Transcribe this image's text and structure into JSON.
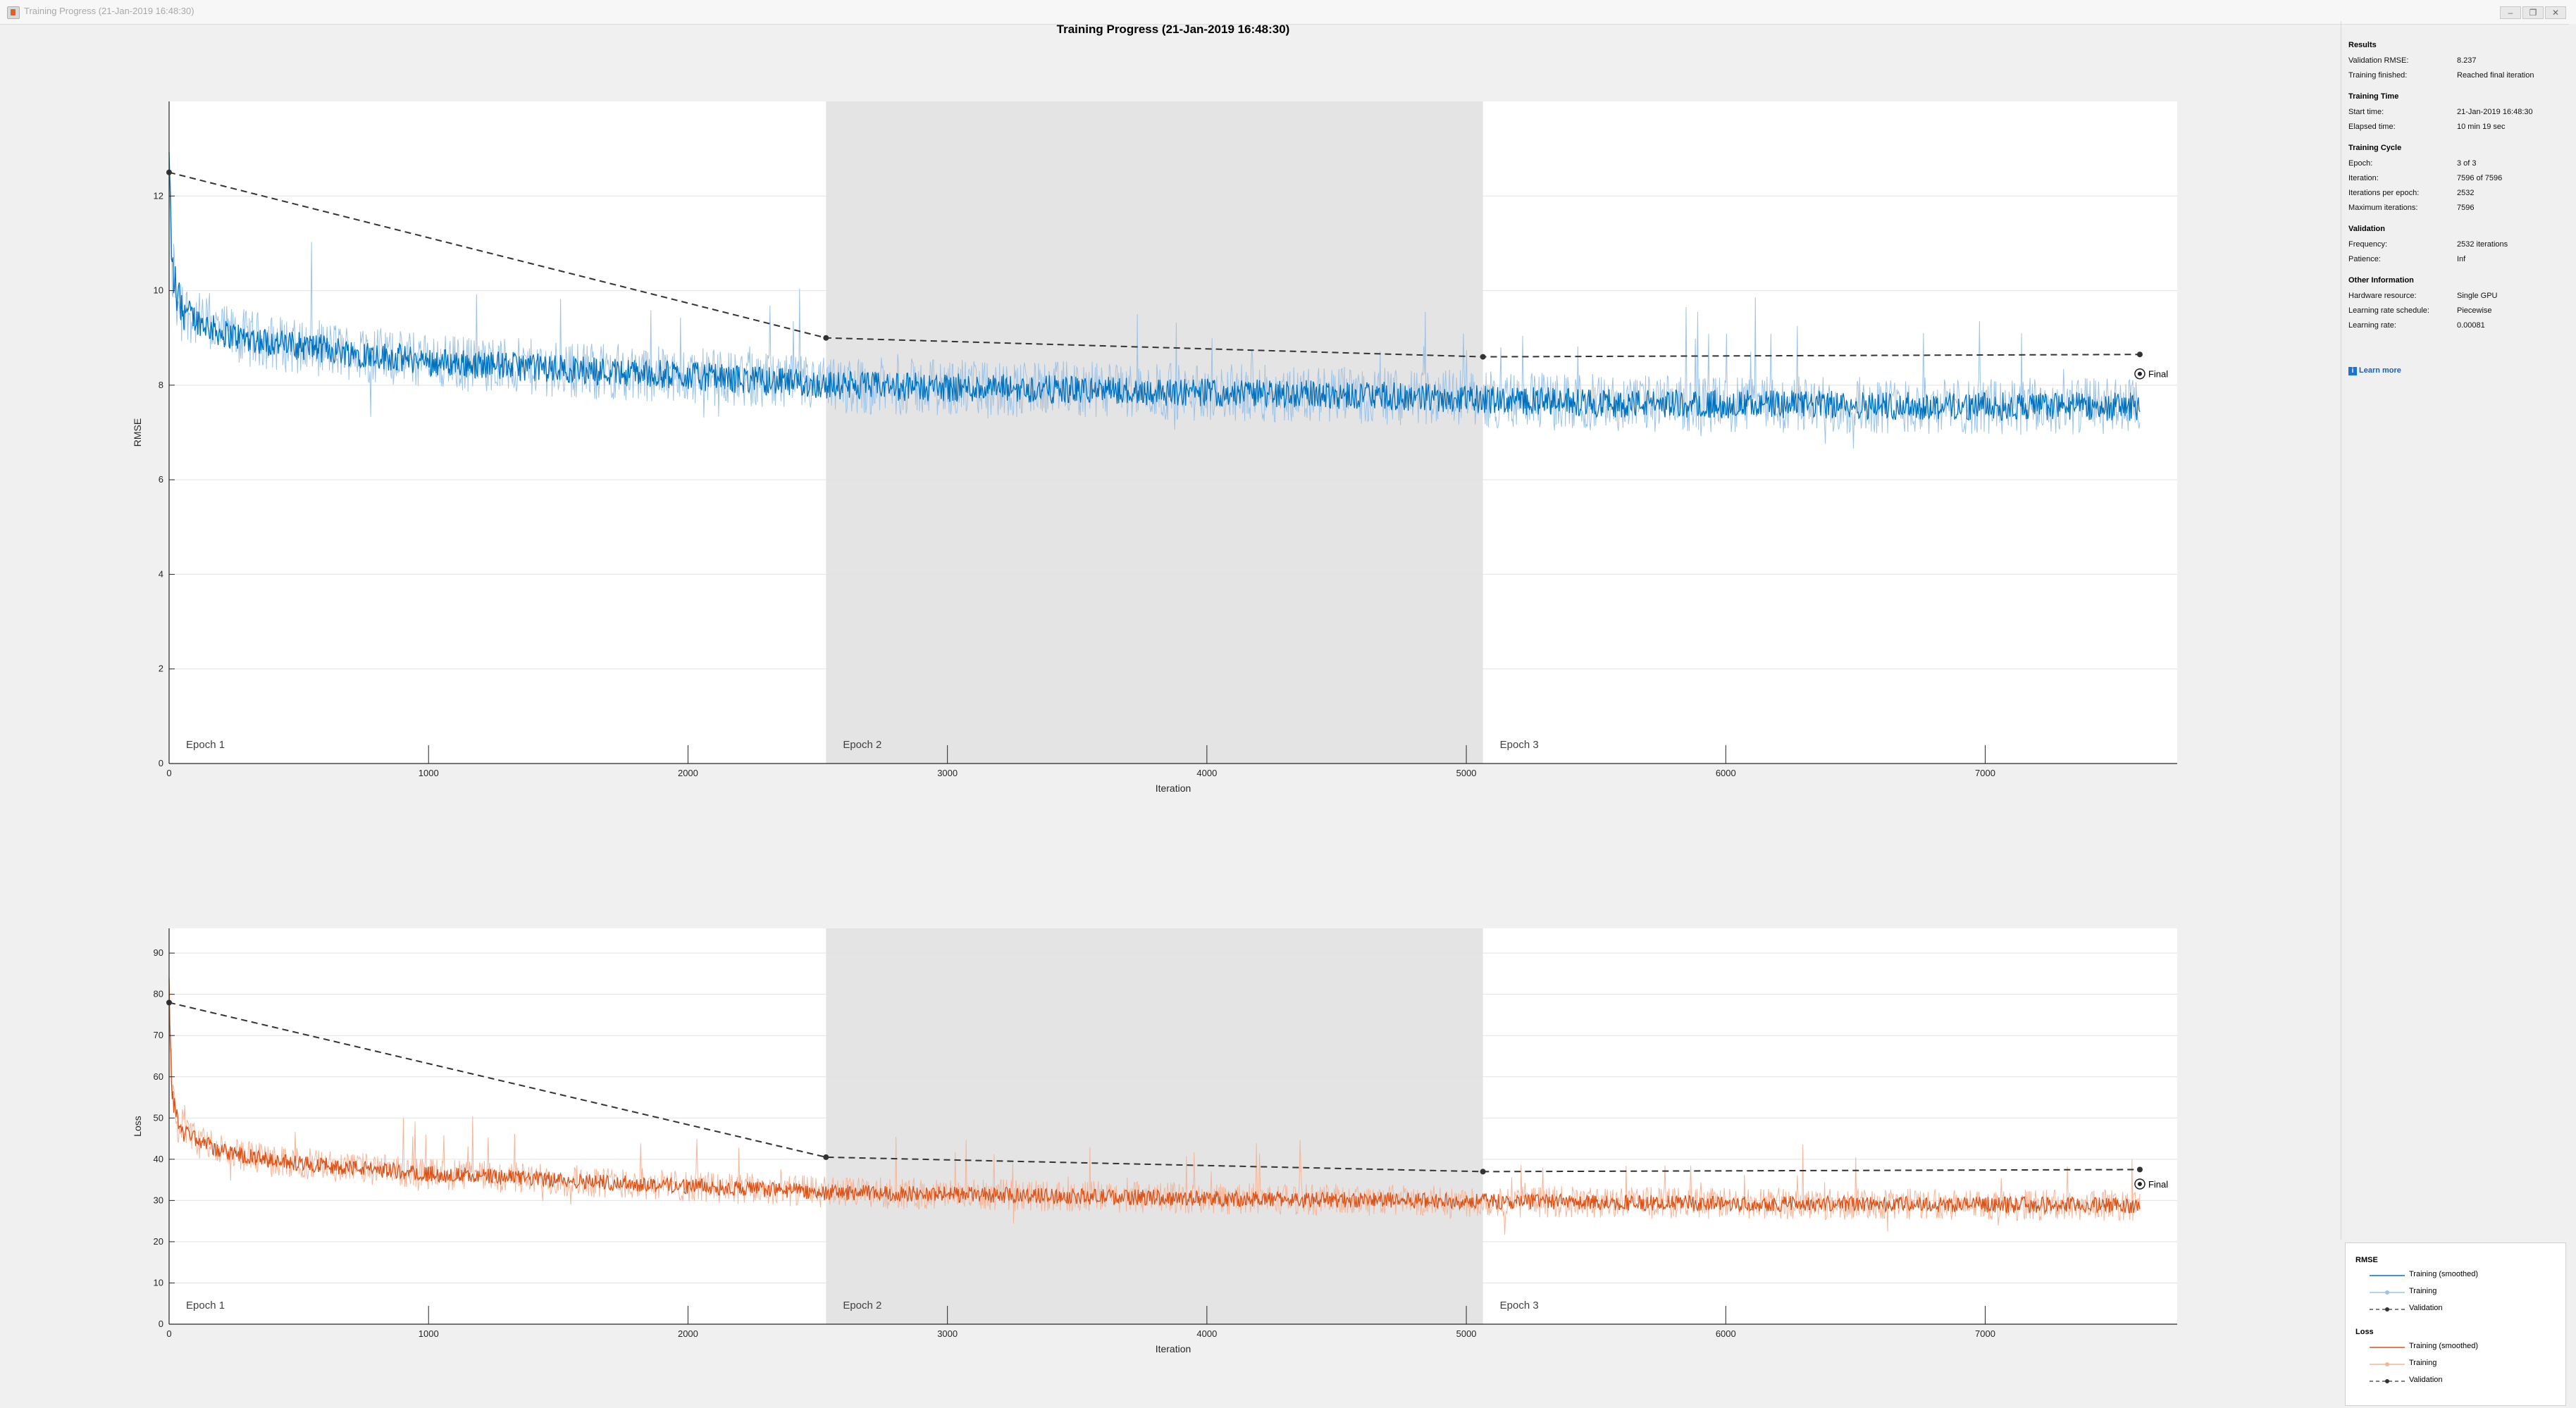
{
  "window": {
    "title": "Training Progress (21-Jan-2019 16:48:30)",
    "buttons": [
      "–",
      "❐",
      "✕"
    ]
  },
  "plot_title": "Training Progress (21-Jan-2019 16:48:30)",
  "colors": {
    "rmse_smoothed": "#0072bd",
    "rmse_raw": "#9dc3e6",
    "loss_smoothed": "#d95319",
    "loss_raw": "#f4b69a",
    "validation": "#333333",
    "epoch_shade": "#e4e4e4"
  },
  "info": {
    "results": {
      "heading": "Results",
      "rows": [
        {
          "label": "Validation RMSE:",
          "value": "8.237"
        },
        {
          "label": "Training finished:",
          "value": "Reached final iteration"
        }
      ]
    },
    "training_time": {
      "heading": "Training Time",
      "rows": [
        {
          "label": "Start time:",
          "value": "21-Jan-2019 16:48:30"
        },
        {
          "label": "Elapsed time:",
          "value": "10 min 19 sec"
        }
      ]
    },
    "training_cycle": {
      "heading": "Training Cycle",
      "rows": [
        {
          "label": "Epoch:",
          "value": "3 of 3"
        },
        {
          "label": "Iteration:",
          "value": "7596 of 7596"
        },
        {
          "label": "Iterations per epoch:",
          "value": "2532"
        },
        {
          "label": "Maximum iterations:",
          "value": "7596"
        }
      ]
    },
    "validation": {
      "heading": "Validation",
      "rows": [
        {
          "label": "Frequency:",
          "value": "2532 iterations"
        },
        {
          "label": "Patience:",
          "value": "Inf"
        }
      ]
    },
    "other": {
      "heading": "Other Information",
      "rows": [
        {
          "label": "Hardware resource:",
          "value": "Single GPU"
        },
        {
          "label": "Learning rate schedule:",
          "value": "Piecewise"
        },
        {
          "label": "Learning rate:",
          "value": "0.00081"
        }
      ]
    },
    "learn_more": "Learn more"
  },
  "legend": {
    "rmse_heading": "RMSE",
    "loss_heading": "Loss",
    "items": [
      "Training (smoothed)",
      "Training",
      "Validation"
    ]
  },
  "chart_data": [
    {
      "type": "line",
      "xlabel": "Iteration",
      "ylabel": "RMSE",
      "xlim": [
        0,
        7740
      ],
      "ylim": [
        0,
        14
      ],
      "xticks": [
        0,
        1000,
        2000,
        3000,
        4000,
        5000,
        6000,
        7000
      ],
      "yticks": [
        0,
        2,
        4,
        6,
        8,
        10,
        12
      ],
      "epochs": [
        {
          "label": "Epoch 1",
          "start": 0,
          "end": 2532,
          "shaded": false
        },
        {
          "label": "Epoch 2",
          "start": 2532,
          "end": 5064,
          "shaded": true
        },
        {
          "label": "Epoch 3",
          "start": 5064,
          "end": 7596,
          "shaded": false
        }
      ],
      "series": [
        {
          "name": "Training (smoothed)",
          "x": [
            0,
            10,
            30,
            60,
            100,
            200,
            400,
            700,
            1000,
            1500,
            2000,
            2532,
            3000,
            3500,
            4000,
            4500,
            5064,
            5500,
            6000,
            6500,
            7000,
            7596
          ],
          "y": [
            12.8,
            10.6,
            9.9,
            9.6,
            9.4,
            9.1,
            8.9,
            8.7,
            8.5,
            8.35,
            8.2,
            8.0,
            7.95,
            7.9,
            7.85,
            7.8,
            7.7,
            7.62,
            7.6,
            7.58,
            7.55,
            7.55
          ],
          "noise": 0.55
        },
        {
          "name": "Validation",
          "x": [
            0,
            2532,
            5064,
            7596
          ],
          "y": [
            12.5,
            9.0,
            8.6,
            8.65
          ]
        }
      ],
      "final_marker": {
        "x": 7596,
        "y": 8.24,
        "label": "Final"
      }
    },
    {
      "type": "line",
      "xlabel": "Iteration",
      "ylabel": "Loss",
      "xlim": [
        0,
        7740
      ],
      "ylim": [
        0,
        96
      ],
      "xticks": [
        0,
        1000,
        2000,
        3000,
        4000,
        5000,
        6000,
        7000
      ],
      "yticks": [
        0,
        10,
        20,
        30,
        40,
        50,
        60,
        70,
        80,
        90
      ],
      "epochs": [
        {
          "label": "Epoch 1",
          "start": 0,
          "end": 2532,
          "shaded": false
        },
        {
          "label": "Epoch 2",
          "start": 2532,
          "end": 5064,
          "shaded": true
        },
        {
          "label": "Epoch 3",
          "start": 5064,
          "end": 7596,
          "shaded": false
        }
      ],
      "series": [
        {
          "name": "Training (smoothed)",
          "x": [
            0,
            10,
            30,
            60,
            100,
            200,
            400,
            700,
            1000,
            1500,
            2000,
            2532,
            3000,
            3500,
            4000,
            4500,
            5064,
            5500,
            6000,
            6500,
            7000,
            7596
          ],
          "y": [
            82,
            56,
            50,
            47,
            45,
            42,
            39.5,
            38,
            36.5,
            35,
            33.5,
            32,
            31.5,
            31,
            30.5,
            30.2,
            29.8,
            29.5,
            29.3,
            29.2,
            29,
            28.8
          ],
          "noise": 3.5
        },
        {
          "name": "Validation",
          "x": [
            0,
            2532,
            5064,
            7596
          ],
          "y": [
            78,
            40.5,
            37,
            37.5
          ]
        }
      ],
      "final_marker": {
        "x": 7596,
        "y": 34,
        "label": "Final"
      }
    }
  ]
}
